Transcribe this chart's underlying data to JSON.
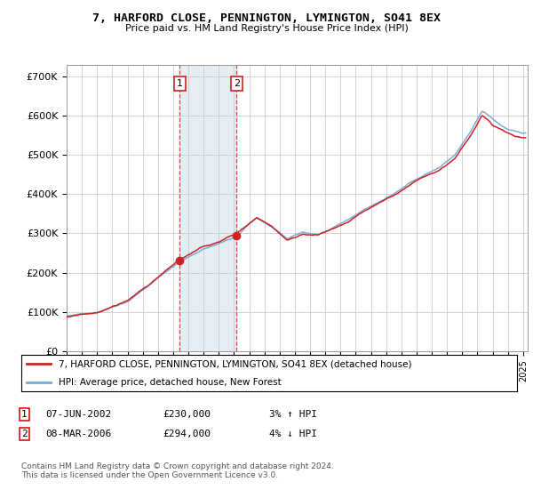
{
  "title": "7, HARFORD CLOSE, PENNINGTON, LYMINGTON, SO41 8EX",
  "subtitle": "Price paid vs. HM Land Registry's House Price Index (HPI)",
  "ylabel_ticks": [
    "£0",
    "£100K",
    "£200K",
    "£300K",
    "£400K",
    "£500K",
    "£600K",
    "£700K"
  ],
  "ytick_vals": [
    0,
    100000,
    200000,
    300000,
    400000,
    500000,
    600000,
    700000
  ],
  "ylim": [
    0,
    730000
  ],
  "xlim_start": 1995.3,
  "xlim_end": 2025.3,
  "hpi_color": "#7aaddb",
  "price_color": "#cc2222",
  "sale1_date": 2002.44,
  "sale1_price": 230000,
  "sale2_date": 2006.18,
  "sale2_price": 294000,
  "legend_line1": "7, HARFORD CLOSE, PENNINGTON, LYMINGTON, SO41 8EX (detached house)",
  "legend_line2": "HPI: Average price, detached house, New Forest",
  "footer": "Contains HM Land Registry data © Crown copyright and database right 2024.\nThis data is licensed under the Open Government Licence v3.0.",
  "bg_color": "#ffffff",
  "grid_color": "#cccccc",
  "shade_color": "#dce8f0"
}
